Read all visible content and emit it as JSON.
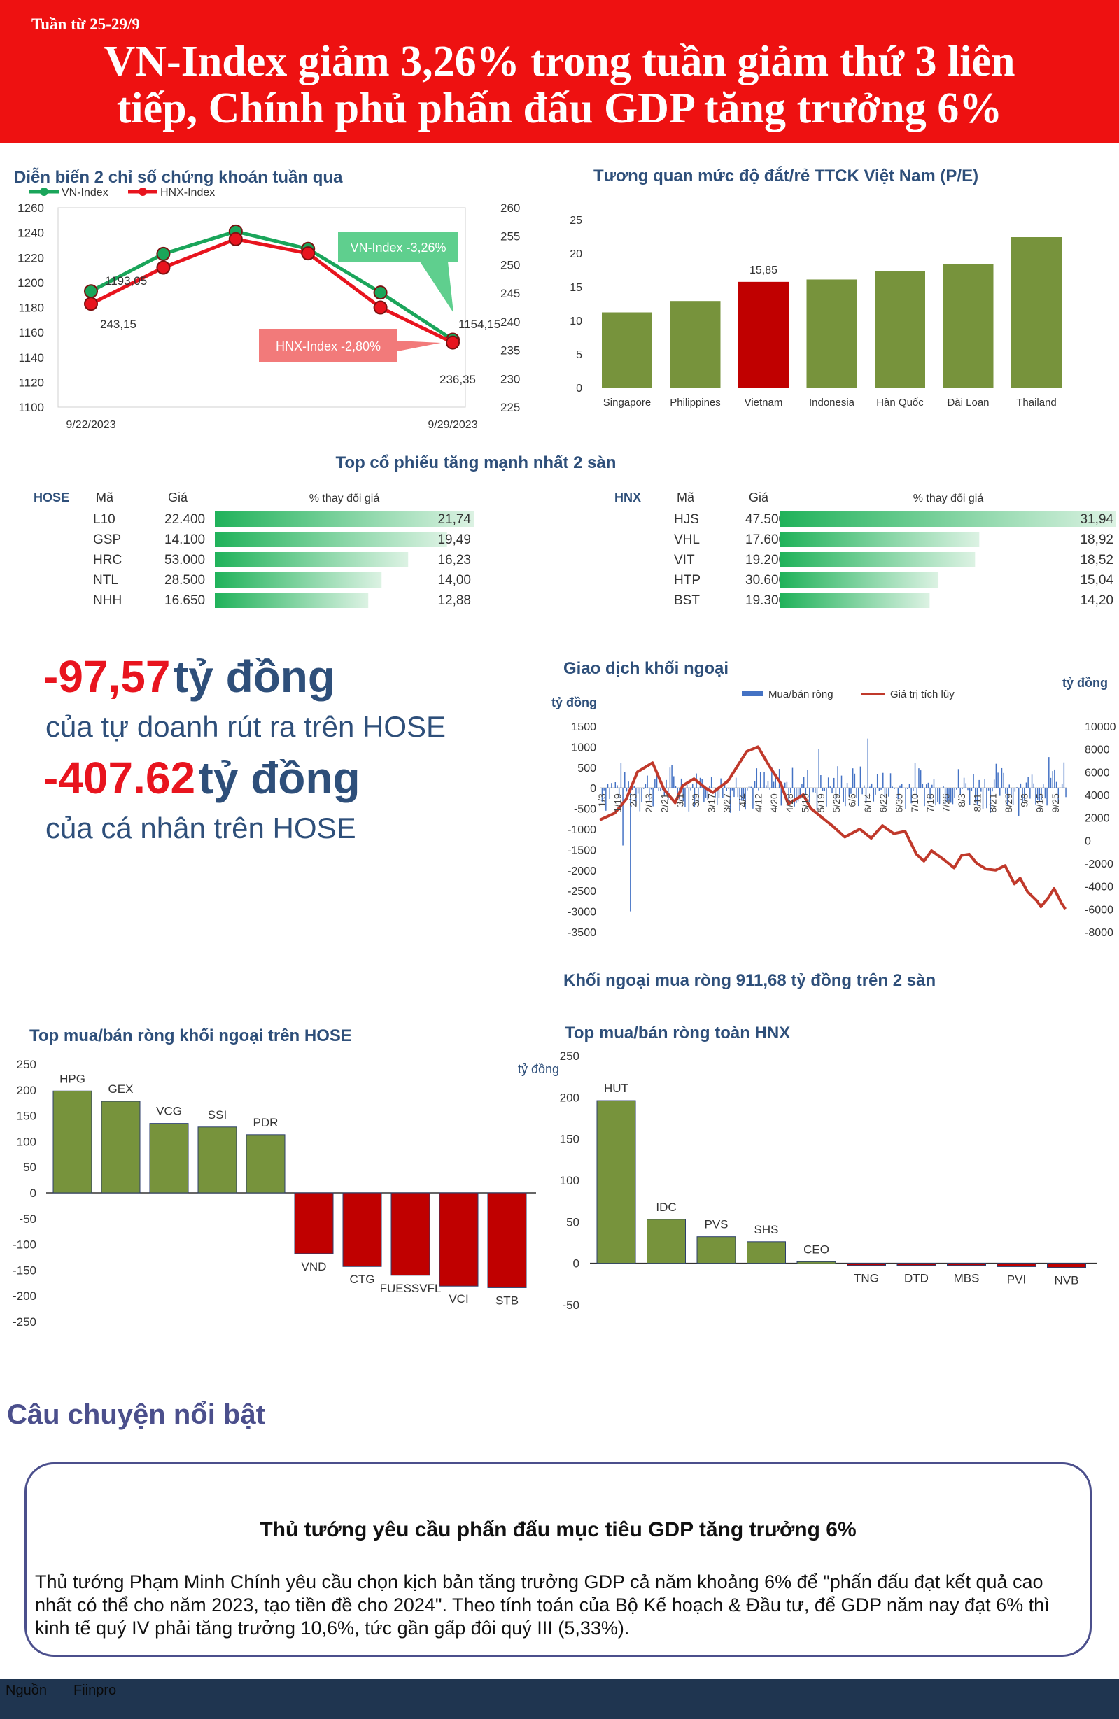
{
  "header": {
    "week": "Tuần từ 25-29/9",
    "title_line1": "VN-Index giảm 3,26% trong tuần giảm thứ 3 liên",
    "title_line2": "tiếp, Chính phủ phấn đấu GDP tăng trưởng 6%",
    "bg_color": "#ee1111"
  },
  "colors": {
    "green": "#77933c",
    "red": "#c00000",
    "navy": "#2e4f7a",
    "vn_line": "#1aa55a",
    "hnx_line": "#e8141e"
  },
  "index_chart": {
    "title": "Diễn biến 2 chỉ số chứng khoán tuần qua",
    "callout_vn": "VN-Index -3,26%",
    "callout_hnx": "HNX-Index -2,80%",
    "chart_data": {
      "type": "line",
      "x": [
        "9/22/2023",
        "9/25/2023",
        "9/26/2023",
        "9/27/2023",
        "9/28/2023",
        "9/29/2023"
      ],
      "x_tick_labels": [
        "9/22/2023",
        "9/29/2023"
      ],
      "series": [
        {
          "name": "VN-Index",
          "axis": "left",
          "values": [
            1193.05,
            1223,
            1241,
            1227,
            1192,
            1154.15
          ]
        },
        {
          "name": "HNX-Index",
          "axis": "right",
          "values": [
            243.15,
            249.5,
            254.5,
            252.0,
            242.5,
            236.35
          ]
        }
      ],
      "data_labels": [
        {
          "series": "VN-Index",
          "index": 0,
          "text": "1193,05"
        },
        {
          "series": "HNX-Index",
          "index": 0,
          "text": "243,15"
        },
        {
          "series": "VN-Index",
          "index": 5,
          "text": "1154,15"
        },
        {
          "series": "HNX-Index",
          "index": 5,
          "text": "236,35"
        }
      ],
      "ylim_left": [
        1100,
        1260
      ],
      "yticks_left": [
        "1100",
        "1120",
        "1140",
        "1160",
        "1180",
        "1200",
        "1220",
        "1240",
        "1260"
      ],
      "ylim_right": [
        225,
        260
      ],
      "yticks_right": [
        "225",
        "230",
        "235",
        "240",
        "245",
        "250",
        "255",
        "260"
      ],
      "legend_position": "top-left"
    }
  },
  "pe_chart": {
    "title": "Tương quan mức độ đắt/rẻ TTCK Việt Nam (P/E)",
    "chart_data": {
      "type": "bar",
      "categories": [
        "Singapore",
        "Philippines",
        "Vietnam",
        "Indonesia",
        "Hàn Quốc",
        "Đài Loan",
        "Thailand"
      ],
      "values": [
        11.3,
        13.0,
        15.85,
        16.2,
        17.5,
        18.5,
        22.5
      ],
      "highlight": "Vietnam",
      "data_label": "15,85",
      "ylim": [
        0,
        25
      ],
      "yticks": [
        "0",
        "5",
        "10",
        "15",
        "20",
        "25"
      ]
    }
  },
  "top_gainers": {
    "title": "Top cổ phiếu tăng mạnh nhất 2 sàn",
    "hose": {
      "exchange": "HOSE",
      "col_code": "Mã",
      "col_price": "Giá",
      "col_change": "% thay đổi giá",
      "rows": [
        {
          "code": "L10",
          "price": "22.400",
          "change": 21.74,
          "change_label": "21,74"
        },
        {
          "code": "GSP",
          "price": "14.100",
          "change": 19.49,
          "change_label": "19,49"
        },
        {
          "code": "HRC",
          "price": "53.000",
          "change": 16.23,
          "change_label": "16,23"
        },
        {
          "code": "NTL",
          "price": "28.500",
          "change": 14.0,
          "change_label": "14,00"
        },
        {
          "code": "NHH",
          "price": "16.650",
          "change": 12.88,
          "change_label": "12,88"
        }
      ]
    },
    "hnx": {
      "exchange": "HNX",
      "col_code": "Mã",
      "col_price": "Giá",
      "col_change": "% thay đổi giá",
      "rows": [
        {
          "code": "HJS",
          "price": "47.500",
          "change": 31.94,
          "change_label": "31,94"
        },
        {
          "code": "VHL",
          "price": "17.600",
          "change": 18.92,
          "change_label": "18,92"
        },
        {
          "code": "VIT",
          "price": "19.200",
          "change": 18.52,
          "change_label": "18,52"
        },
        {
          "code": "HTP",
          "price": "30.600",
          "change": 15.04,
          "change_label": "15,04"
        },
        {
          "code": "BST",
          "price": "19.300",
          "change": 14.2,
          "change_label": "14,20"
        }
      ]
    }
  },
  "highlights": {
    "proprietary_value": "-97,57",
    "proprietary_unit": "tỷ đồng",
    "proprietary_desc": "của tự doanh rút ra trên HOSE",
    "individual_value": "-407.62",
    "individual_unit": "tỷ đồng",
    "individual_desc": "của cá nhân trên HOSE"
  },
  "foreign_chart": {
    "title": "Giao dịch khối ngoại",
    "unit_left": "tỷ đồng",
    "unit_right": "tỷ đồng",
    "summary": "Khối ngoại mua ròng 911,68 tỷ đồng trên 2 sàn",
    "chart_data": {
      "type": "bar+line",
      "series": [
        {
          "name": "Mua/bán ròng",
          "axis": "left",
          "type": "bar"
        },
        {
          "name": "Giá trị tích lũy",
          "axis": "right",
          "type": "line"
        }
      ],
      "x_tick_labels": [
        "1/3",
        "1/19",
        "2/3",
        "2/13",
        "2/21",
        "3/1",
        "3/9",
        "3/17",
        "3/27",
        "4/4",
        "4/12",
        "4/20",
        "4/28",
        "5/10",
        "5/19",
        "5/29",
        "6/6",
        "6/14",
        "6/22",
        "6/30",
        "7/10",
        "7/18",
        "7/26",
        "8/3",
        "8/11",
        "8/21",
        "8/29",
        "9/8",
        "9/15",
        "9/25"
      ],
      "ylim_left": [
        -3500,
        1500
      ],
      "yticks_left": [
        "1500",
        "1000",
        "500",
        "0",
        "-500",
        "-1000",
        "-1500",
        "-2000",
        "-2500",
        "-3000",
        "-3500"
      ],
      "ylim_right": [
        -8000,
        10000
      ],
      "yticks_right": [
        "10000",
        "8000",
        "6000",
        "4000",
        "2000",
        "0",
        "-2000",
        "-4000",
        "-6000",
        "-8000"
      ],
      "cumulative_keypoints": [
        [
          0,
          1800
        ],
        [
          8,
          2400
        ],
        [
          14,
          3600
        ],
        [
          20,
          6000
        ],
        [
          28,
          6800
        ],
        [
          34,
          4500
        ],
        [
          40,
          3300
        ],
        [
          44,
          4800
        ],
        [
          50,
          5400
        ],
        [
          56,
          4600
        ],
        [
          60,
          4200
        ],
        [
          68,
          5200
        ],
        [
          78,
          7800
        ],
        [
          84,
          8200
        ],
        [
          90,
          6500
        ],
        [
          96,
          5000
        ],
        [
          100,
          3200
        ],
        [
          108,
          4000
        ],
        [
          112,
          2800
        ],
        [
          118,
          2000
        ],
        [
          124,
          1200
        ],
        [
          130,
          300
        ],
        [
          138,
          1000
        ],
        [
          144,
          200
        ],
        [
          150,
          1300
        ],
        [
          156,
          600
        ],
        [
          162,
          800
        ],
        [
          168,
          -1200
        ],
        [
          172,
          -1800
        ],
        [
          176,
          -900
        ],
        [
          182,
          -1600
        ],
        [
          188,
          -2400
        ],
        [
          192,
          -1300
        ],
        [
          196,
          -1200
        ],
        [
          200,
          -2000
        ],
        [
          205,
          -2500
        ],
        [
          210,
          -2600
        ],
        [
          215,
          -2200
        ],
        [
          220,
          -3800
        ],
        [
          223,
          -3300
        ],
        [
          227,
          -4500
        ],
        [
          232,
          -5300
        ],
        [
          234,
          -5800
        ],
        [
          238,
          -5000
        ],
        [
          241,
          -4200
        ],
        [
          245,
          -5500
        ],
        [
          247,
          -6000
        ]
      ],
      "net_bar_seed": 7
    }
  },
  "hose_foreign": {
    "title": "Top mua/bán ròng khối ngoại trên HOSE",
    "chart_data": {
      "type": "bar",
      "categories": [
        "HPG",
        "GEX",
        "VCG",
        "SSI",
        "PDR",
        "VND",
        "CTG",
        "FUESSVFL",
        "VCI",
        "STB"
      ],
      "values": [
        198,
        178,
        135,
        128,
        113,
        -118,
        -143,
        -160,
        -181,
        -184
      ],
      "ylim": [
        -250,
        250
      ],
      "yticks": [
        "250",
        "200",
        "150",
        "100",
        "50",
        "0",
        "-50",
        "-100",
        "-150",
        "-200",
        "-250"
      ]
    }
  },
  "hnx_foreign": {
    "title": "Top mua/bán ròng toàn HNX",
    "unit": "tỷ đồng",
    "chart_data": {
      "type": "bar",
      "categories": [
        "HUT",
        "IDC",
        "PVS",
        "SHS",
        "CEO",
        "TNG",
        "DTD",
        "MBS",
        "PVI",
        "NVB"
      ],
      "values": [
        196,
        53,
        32,
        26,
        2,
        -1.5,
        -2,
        -2.5,
        -4,
        -5
      ],
      "ylim": [
        -50,
        250
      ],
      "yticks": [
        "250",
        "200",
        "150",
        "100",
        "50",
        "0",
        "-50"
      ]
    }
  },
  "story": {
    "heading": "Câu chuyện nổi bật",
    "title": "Thủ tướng yêu cầu phấn đấu mục tiêu GDP tăng trưởng 6%",
    "body": "Thủ tướng Phạm Minh Chính yêu cầu chọn kịch bản tăng trưởng GDP cả năm khoảng 6% để \"phấn đấu đạt kết quả cao nhất có thể cho năm 2023, tạo tiền đề cho 2024\". Theo tính toán của Bộ Kế hoạch & Đầu tư, để GDP năm nay đạt 6% thì kinh tế quý IV phải tăng trưởng 10,6%, tức gần gấp đôi quý III (5,33%)."
  },
  "footer": {
    "label": "Nguồn",
    "source": "Fiinpro"
  }
}
